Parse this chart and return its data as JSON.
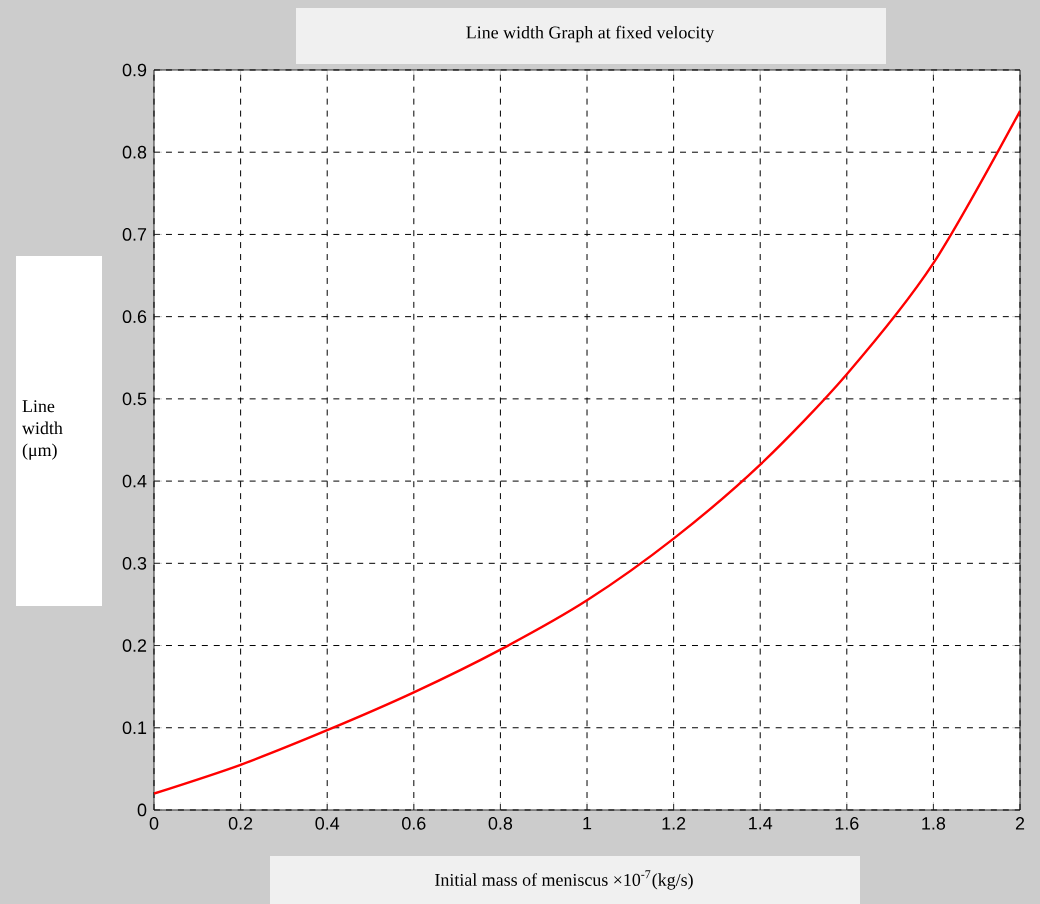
{
  "chart_data": {
    "type": "line",
    "title": "Line width Graph at fixed velocity",
    "xlabel": "Initial mass of meniscus ×10$^{-7}$(kg/s)",
    "ylabel": "Line width (μm)",
    "x": [
      0,
      0.2,
      0.4,
      0.6,
      0.8,
      1.0,
      1.2,
      1.4,
      1.6,
      1.8,
      2.0
    ],
    "series": [
      {
        "color": "#ff0000",
        "values": [
          0.02,
          0.055,
          0.097,
          0.143,
          0.195,
          0.255,
          0.33,
          0.42,
          0.53,
          0.665,
          0.85
        ]
      }
    ],
    "xlim": [
      0,
      2
    ],
    "ylim": [
      0,
      0.9
    ],
    "xticks": [
      0,
      0.2,
      0.4,
      0.6,
      0.8,
      1,
      1.2,
      1.4,
      1.6,
      1.8,
      2
    ],
    "yticks": [
      0,
      0.1,
      0.2,
      0.3,
      0.4,
      0.5,
      0.6,
      0.7,
      0.8,
      0.9
    ],
    "grid": true,
    "line_style": "solid",
    "marker": "none"
  }
}
